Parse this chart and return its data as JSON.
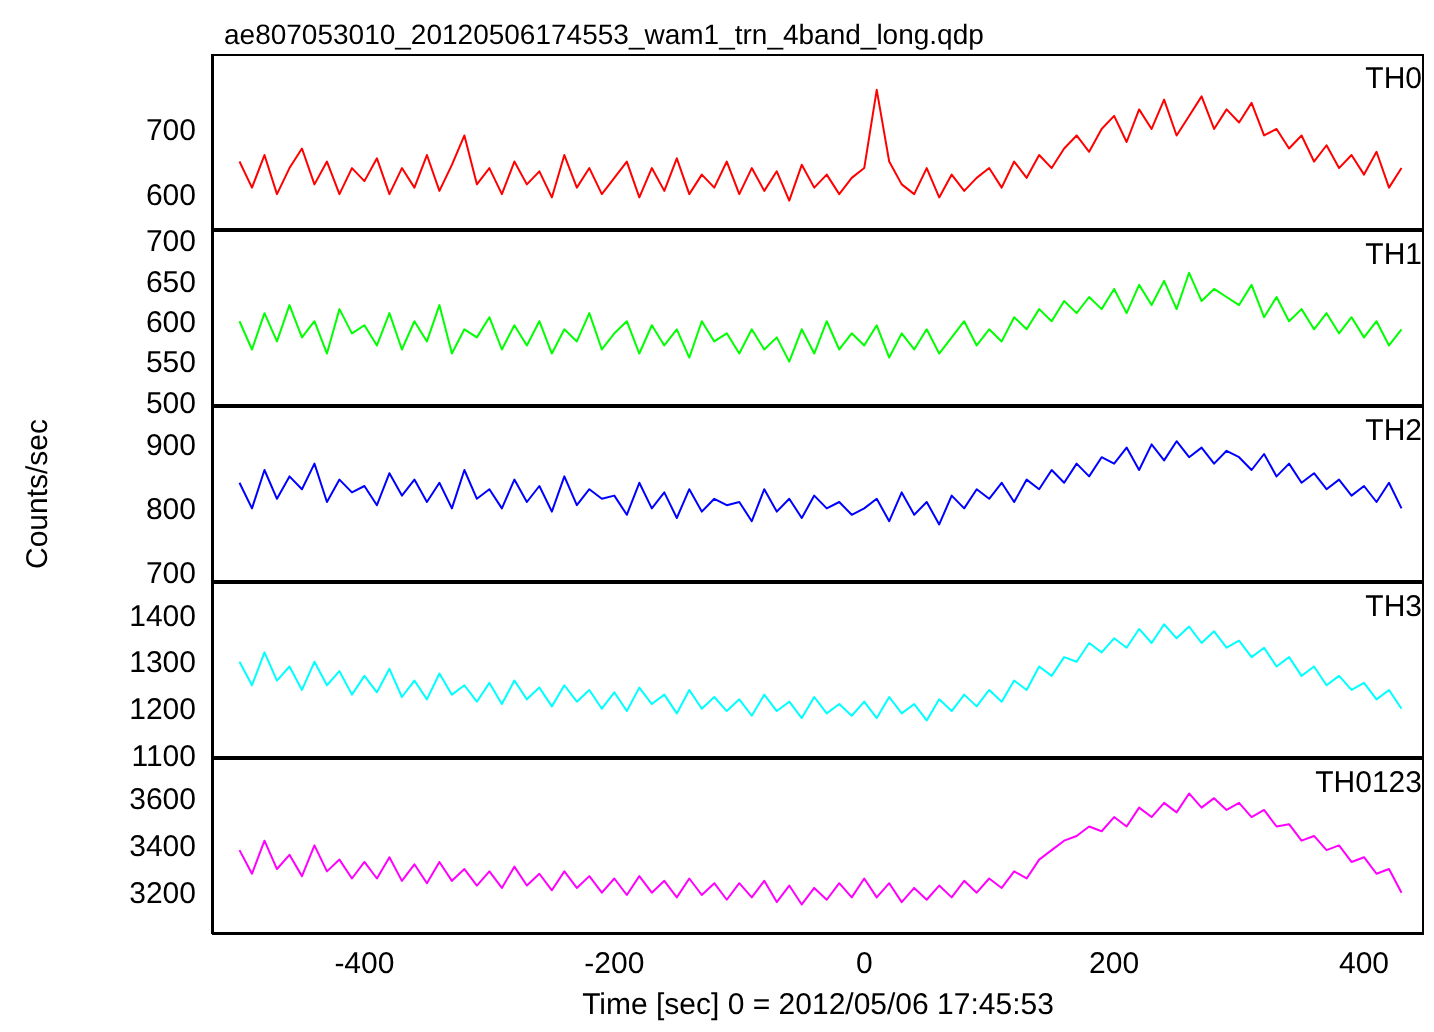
{
  "chart_data": [
    {
      "type": "line",
      "title": "ae807053010_20120506174553_wam1_trn_4band_long.qdp",
      "tick_labels": "y",
      "xlim": [
        -522,
        448
      ],
      "xticks": [
        -400,
        -200,
        0,
        200,
        400
      ],
      "ylim": [
        545,
        815
      ],
      "yticks": [
        600,
        700
      ],
      "x": [
        -500,
        -490,
        -480,
        -470,
        -460,
        -450,
        -440,
        -430,
        -420,
        -410,
        -400,
        -390,
        -380,
        -370,
        -360,
        -350,
        -340,
        -330,
        -320,
        -310,
        -300,
        -290,
        -280,
        -270,
        -260,
        -250,
        -240,
        -230,
        -220,
        -210,
        -200,
        -190,
        -180,
        -170,
        -160,
        -150,
        -140,
        -130,
        -120,
        -110,
        -100,
        -90,
        -80,
        -70,
        -60,
        -50,
        -40,
        -30,
        -20,
        -10,
        0,
        10,
        20,
        30,
        40,
        50,
        60,
        70,
        80,
        90,
        100,
        110,
        120,
        130,
        140,
        150,
        160,
        170,
        180,
        190,
        200,
        210,
        220,
        230,
        240,
        250,
        260,
        270,
        280,
        290,
        300,
        310,
        320,
        330,
        340,
        350,
        360,
        370,
        380,
        390,
        400,
        410,
        420,
        430
      ],
      "series": [
        {
          "name": "TH0",
          "color": "#ff0000",
          "values": [
            650,
            610,
            660,
            600,
            640,
            670,
            615,
            650,
            600,
            640,
            620,
            655,
            600,
            640,
            610,
            660,
            605,
            645,
            690,
            615,
            640,
            600,
            650,
            615,
            635,
            595,
            660,
            610,
            640,
            600,
            625,
            650,
            595,
            640,
            605,
            655,
            600,
            630,
            610,
            650,
            600,
            640,
            605,
            635,
            590,
            645,
            610,
            630,
            600,
            625,
            640,
            760,
            650,
            615,
            600,
            640,
            595,
            630,
            605,
            625,
            640,
            610,
            650,
            625,
            660,
            640,
            670,
            690,
            665,
            700,
            720,
            680,
            730,
            700,
            745,
            690,
            720,
            750,
            700,
            730,
            710,
            740,
            690,
            700,
            670,
            690,
            650,
            675,
            640,
            660,
            630,
            665,
            610,
            640
          ]
        }
      ]
    },
    {
      "type": "line",
      "tick_labels": "y",
      "xlim": [
        -522,
        448
      ],
      "xticks": [
        -400,
        -200,
        0,
        200,
        400
      ],
      "ylim": [
        495,
        713
      ],
      "yticks": [
        500,
        550,
        600,
        650,
        700
      ],
      "x": [
        -500,
        -490,
        -480,
        -470,
        -460,
        -450,
        -440,
        -430,
        -420,
        -410,
        -400,
        -390,
        -380,
        -370,
        -360,
        -350,
        -340,
        -330,
        -320,
        -310,
        -300,
        -290,
        -280,
        -270,
        -260,
        -250,
        -240,
        -230,
        -220,
        -210,
        -200,
        -190,
        -180,
        -170,
        -160,
        -150,
        -140,
        -130,
        -120,
        -110,
        -100,
        -90,
        -80,
        -70,
        -60,
        -50,
        -40,
        -30,
        -20,
        -10,
        0,
        10,
        20,
        30,
        40,
        50,
        60,
        70,
        80,
        90,
        100,
        110,
        120,
        130,
        140,
        150,
        160,
        170,
        180,
        190,
        200,
        210,
        220,
        230,
        240,
        250,
        260,
        270,
        280,
        290,
        300,
        310,
        320,
        330,
        340,
        350,
        360,
        370,
        380,
        390,
        400,
        410,
        420,
        430
      ],
      "series": [
        {
          "name": "TH1",
          "color": "#00ff00",
          "values": [
            600,
            565,
            610,
            575,
            620,
            580,
            600,
            560,
            615,
            585,
            595,
            570,
            610,
            565,
            600,
            575,
            620,
            560,
            590,
            580,
            605,
            565,
            595,
            570,
            600,
            560,
            590,
            575,
            610,
            565,
            585,
            600,
            560,
            595,
            570,
            590,
            555,
            600,
            575,
            585,
            560,
            590,
            565,
            580,
            550,
            590,
            560,
            600,
            565,
            585,
            570,
            595,
            555,
            585,
            565,
            590,
            560,
            580,
            600,
            570,
            590,
            575,
            605,
            590,
            615,
            600,
            625,
            610,
            630,
            615,
            640,
            610,
            645,
            620,
            650,
            615,
            660,
            625,
            640,
            630,
            620,
            645,
            605,
            630,
            600,
            615,
            590,
            610,
            585,
            605,
            580,
            600,
            570,
            590
          ]
        }
      ]
    },
    {
      "type": "line",
      "tick_labels": "y",
      "ylabel": "Counts/sec",
      "xlim": [
        -522,
        448
      ],
      "xticks": [
        -400,
        -200,
        0,
        200,
        400
      ],
      "ylim": [
        685,
        960
      ],
      "yticks": [
        700,
        800,
        900
      ],
      "x": [
        -500,
        -490,
        -480,
        -470,
        -460,
        -450,
        -440,
        -430,
        -420,
        -410,
        -400,
        -390,
        -380,
        -370,
        -360,
        -350,
        -340,
        -330,
        -320,
        -310,
        -300,
        -290,
        -280,
        -270,
        -260,
        -250,
        -240,
        -230,
        -220,
        -210,
        -200,
        -190,
        -180,
        -170,
        -160,
        -150,
        -140,
        -130,
        -120,
        -110,
        -100,
        -90,
        -80,
        -70,
        -60,
        -50,
        -40,
        -30,
        -20,
        -10,
        0,
        10,
        20,
        30,
        40,
        50,
        60,
        70,
        80,
        90,
        100,
        110,
        120,
        130,
        140,
        150,
        160,
        170,
        180,
        190,
        200,
        210,
        220,
        230,
        240,
        250,
        260,
        270,
        280,
        290,
        300,
        310,
        320,
        330,
        340,
        350,
        360,
        370,
        380,
        390,
        400,
        410,
        420,
        430
      ],
      "series": [
        {
          "name": "TH2",
          "color": "#0000ff",
          "values": [
            840,
            800,
            860,
            815,
            850,
            830,
            870,
            810,
            845,
            825,
            835,
            805,
            855,
            820,
            845,
            810,
            840,
            800,
            860,
            815,
            830,
            800,
            845,
            810,
            835,
            795,
            850,
            805,
            830,
            815,
            820,
            790,
            840,
            800,
            825,
            785,
            830,
            795,
            815,
            805,
            810,
            780,
            830,
            795,
            815,
            785,
            820,
            800,
            810,
            790,
            800,
            815,
            780,
            825,
            790,
            810,
            775,
            820,
            800,
            830,
            815,
            840,
            810,
            845,
            830,
            860,
            840,
            870,
            850,
            880,
            870,
            895,
            860,
            900,
            875,
            905,
            880,
            895,
            870,
            890,
            880,
            860,
            885,
            850,
            870,
            840,
            855,
            830,
            845,
            820,
            835,
            810,
            840,
            800
          ]
        }
      ]
    },
    {
      "type": "line",
      "tick_labels": "y",
      "xlim": [
        -522,
        448
      ],
      "xticks": [
        -400,
        -200,
        0,
        200,
        400
      ],
      "ylim": [
        1095,
        1470
      ],
      "yticks": [
        1100,
        1200,
        1300,
        1400
      ],
      "x": [
        -500,
        -490,
        -480,
        -470,
        -460,
        -450,
        -440,
        -430,
        -420,
        -410,
        -400,
        -390,
        -380,
        -370,
        -360,
        -350,
        -340,
        -330,
        -320,
        -310,
        -300,
        -290,
        -280,
        -270,
        -260,
        -250,
        -240,
        -230,
        -220,
        -210,
        -200,
        -190,
        -180,
        -170,
        -160,
        -150,
        -140,
        -130,
        -120,
        -110,
        -100,
        -90,
        -80,
        -70,
        -60,
        -50,
        -40,
        -30,
        -20,
        -10,
        0,
        10,
        20,
        30,
        40,
        50,
        60,
        70,
        80,
        90,
        100,
        110,
        120,
        130,
        140,
        150,
        160,
        170,
        180,
        190,
        200,
        210,
        220,
        230,
        240,
        250,
        260,
        270,
        280,
        290,
        300,
        310,
        320,
        330,
        340,
        350,
        360,
        370,
        380,
        390,
        400,
        410,
        420,
        430
      ],
      "series": [
        {
          "name": "TH3",
          "color": "#00ffff",
          "values": [
            1300,
            1250,
            1320,
            1260,
            1290,
            1240,
            1300,
            1250,
            1280,
            1230,
            1270,
            1235,
            1285,
            1225,
            1260,
            1220,
            1275,
            1230,
            1250,
            1215,
            1255,
            1210,
            1260,
            1220,
            1245,
            1205,
            1250,
            1215,
            1240,
            1200,
            1235,
            1195,
            1245,
            1210,
            1230,
            1190,
            1240,
            1200,
            1225,
            1195,
            1220,
            1185,
            1230,
            1195,
            1215,
            1180,
            1225,
            1190,
            1210,
            1185,
            1215,
            1180,
            1225,
            1190,
            1210,
            1175,
            1220,
            1195,
            1230,
            1205,
            1240,
            1215,
            1260,
            1240,
            1290,
            1270,
            1310,
            1300,
            1340,
            1320,
            1350,
            1330,
            1370,
            1340,
            1380,
            1350,
            1375,
            1340,
            1365,
            1330,
            1345,
            1310,
            1330,
            1290,
            1310,
            1270,
            1290,
            1250,
            1270,
            1240,
            1255,
            1220,
            1240,
            1200
          ]
        }
      ]
    },
    {
      "type": "line",
      "xlabel": "Time [sec] 0 = 2012/05/06 17:45:53",
      "xlim": [
        -522,
        448
      ],
      "xticks": [
        -400,
        -200,
        0,
        200,
        400
      ],
      "ylim": [
        3025,
        3770
      ],
      "yticks": [
        3200,
        3400,
        3600
      ],
      "x": [
        -500,
        -490,
        -480,
        -470,
        -460,
        -450,
        -440,
        -430,
        -420,
        -410,
        -400,
        -390,
        -380,
        -370,
        -360,
        -350,
        -340,
        -330,
        -320,
        -310,
        -300,
        -290,
        -280,
        -270,
        -260,
        -250,
        -240,
        -230,
        -220,
        -210,
        -200,
        -190,
        -180,
        -170,
        -160,
        -150,
        -140,
        -130,
        -120,
        -110,
        -100,
        -90,
        -80,
        -70,
        -60,
        -50,
        -40,
        -30,
        -20,
        -10,
        0,
        10,
        20,
        30,
        40,
        50,
        60,
        70,
        80,
        90,
        100,
        110,
        120,
        130,
        140,
        150,
        160,
        170,
        180,
        190,
        200,
        210,
        220,
        230,
        240,
        250,
        260,
        270,
        280,
        290,
        300,
        310,
        320,
        330,
        340,
        350,
        360,
        370,
        380,
        390,
        400,
        410,
        420,
        430
      ],
      "series": [
        {
          "name": "TH0123",
          "color": "#ff00ff",
          "values": [
            3380,
            3280,
            3420,
            3300,
            3360,
            3270,
            3400,
            3290,
            3340,
            3260,
            3330,
            3260,
            3350,
            3250,
            3320,
            3240,
            3330,
            3250,
            3300,
            3230,
            3290,
            3220,
            3310,
            3230,
            3280,
            3210,
            3290,
            3220,
            3270,
            3200,
            3260,
            3190,
            3270,
            3200,
            3250,
            3180,
            3260,
            3190,
            3240,
            3170,
            3240,
            3180,
            3250,
            3160,
            3230,
            3150,
            3220,
            3170,
            3240,
            3180,
            3260,
            3180,
            3240,
            3160,
            3220,
            3170,
            3230,
            3180,
            3250,
            3200,
            3260,
            3220,
            3290,
            3260,
            3340,
            3380,
            3420,
            3440,
            3480,
            3460,
            3520,
            3480,
            3560,
            3520,
            3580,
            3540,
            3620,
            3560,
            3600,
            3550,
            3580,
            3520,
            3550,
            3480,
            3490,
            3420,
            3440,
            3380,
            3400,
            3330,
            3350,
            3280,
            3300,
            3200
          ]
        }
      ]
    }
  ]
}
